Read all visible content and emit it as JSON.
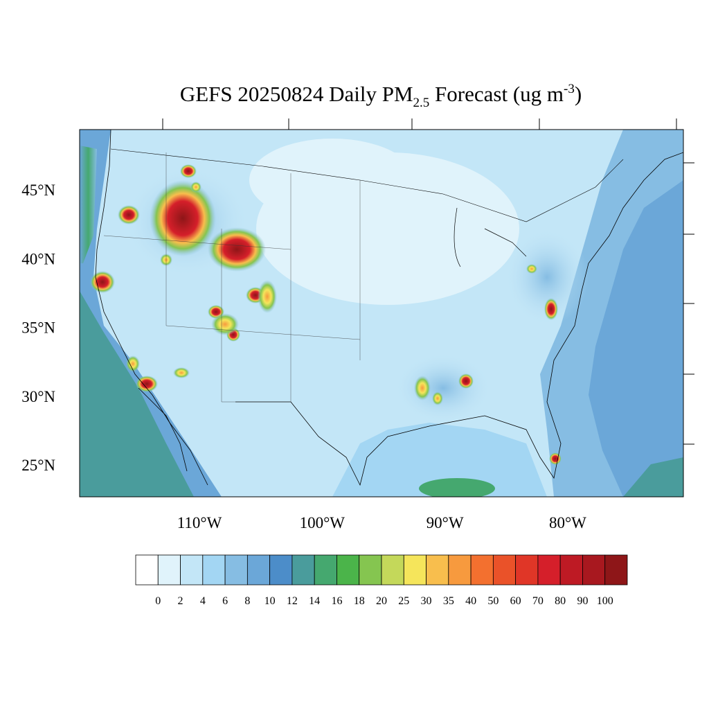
{
  "title": {
    "main": "GEFS 20250824 Daily PM",
    "sub": "2.5",
    "rest": " Forecast (ug m",
    "sup": "-3",
    "close": ")"
  },
  "lat_labels": [
    "45°N",
    "40°N",
    "35°N",
    "30°N",
    "25°N"
  ],
  "lon_labels": [
    "110°W",
    "100°W",
    "90°W",
    "80°W"
  ],
  "colorbar": {
    "colors": [
      "#ffffff",
      "#e0f3fb",
      "#c3e6f7",
      "#a3d6f3",
      "#86bde3",
      "#6ba7d8",
      "#4c8dc9",
      "#4a9c9c",
      "#45a86f",
      "#4bb44a",
      "#85c550",
      "#c4d85a",
      "#f5e55b",
      "#f8be4d",
      "#f79a3e",
      "#f3702f",
      "#ea5229",
      "#e03627",
      "#d51f2a",
      "#be1a24",
      "#a8181f",
      "#8e1618"
    ],
    "labels": [
      0,
      2,
      4,
      6,
      8,
      10,
      12,
      14,
      16,
      18,
      20,
      25,
      30,
      35,
      40,
      50,
      60,
      70,
      80,
      90,
      100
    ]
  }
}
